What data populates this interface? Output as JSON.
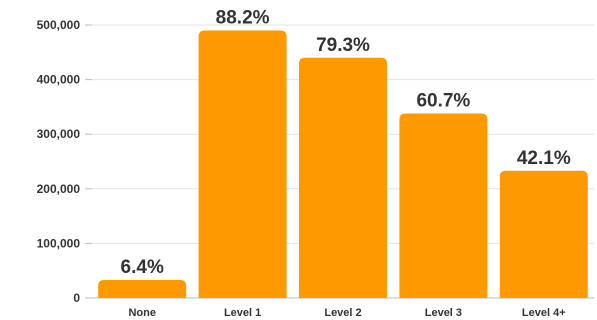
{
  "chart_data": {
    "type": "bar",
    "categories": [
      "None",
      "Level 1",
      "Level 2",
      "Level 3",
      "Level 4+"
    ],
    "values": [
      33000,
      490000,
      440000,
      338000,
      233000
    ],
    "data_labels": [
      "6.4%",
      "88.2%",
      "79.3%",
      "60.7%",
      "42.1%"
    ],
    "y_ticks": [
      0,
      100000,
      200000,
      300000,
      400000,
      500000
    ],
    "y_tick_labels": [
      "0",
      "100,000",
      "200,000",
      "300,000",
      "400,000",
      "500,000"
    ],
    "ylim": [
      0,
      500000
    ],
    "grid": true,
    "legend": "none",
    "title": "",
    "xlabel": "",
    "ylabel": "",
    "bar_color": "#FF9900"
  }
}
